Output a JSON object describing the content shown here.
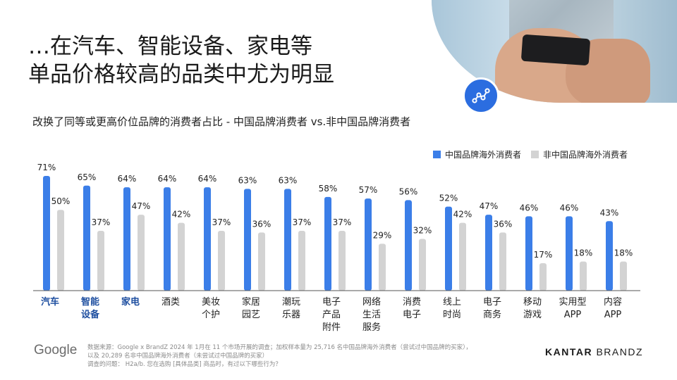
{
  "title_line1": "…在汽车、智能设备、家电等",
  "title_line2": "单品价格较高的品类中尤为明显",
  "subtitle": "改换了同等或更高价位品牌的消费者占比 - 中国品牌消费者 vs.非中国品牌消费者",
  "footer": {
    "google": "Google",
    "note1": "数据来源：Google x BrandZ 2024 年 1月在 11 个市场开展的调查；加权样本量为 25,716 名中国品牌海外消费者（尝试过中国品牌的买家），",
    "note2": "以及 20,289 名非中国品牌海外消费者（未尝试过中国品牌的买家）",
    "note3": "调查的问题： H2a/b. 您在选购 [具体品类] 商品时，有过以下哪些行为？",
    "brand_bold": "KANTAR",
    "brand_light": "BRANDZ"
  },
  "chart_data": {
    "type": "bar",
    "categories": [
      [
        "汽车"
      ],
      [
        "智能",
        "设备"
      ],
      [
        "家电"
      ],
      [
        "酒类"
      ],
      [
        "美妆",
        "个护"
      ],
      [
        "家居",
        "园艺"
      ],
      [
        "潮玩",
        "乐器"
      ],
      [
        "电子",
        "产品",
        "附件"
      ],
      [
        "网络",
        "生活",
        "服务"
      ],
      [
        "消费",
        "电子"
      ],
      [
        "线上",
        "时尚"
      ],
      [
        "电子",
        "商务"
      ],
      [
        "移动",
        "游戏"
      ],
      [
        "实用型",
        "APP"
      ],
      [
        "内容",
        "APP"
      ]
    ],
    "highlighted_categories": [
      0,
      1,
      2
    ],
    "series": [
      {
        "name": "中国品牌海外消费者",
        "color": "#3b7ee8",
        "values": [
          71,
          65,
          64,
          64,
          64,
          63,
          63,
          58,
          57,
          56,
          52,
          47,
          46,
          46,
          43
        ]
      },
      {
        "name": "非中国品牌海外消费者",
        "color": "#d3d3d3",
        "values": [
          50,
          37,
          47,
          42,
          37,
          36,
          37,
          37,
          29,
          32,
          42,
          36,
          17,
          18,
          18
        ]
      }
    ],
    "value_suffix": "%",
    "ylim": [
      0,
      71
    ],
    "colors": {
      "highlight_label": "#1f4fa0",
      "axis": "#555555"
    }
  }
}
